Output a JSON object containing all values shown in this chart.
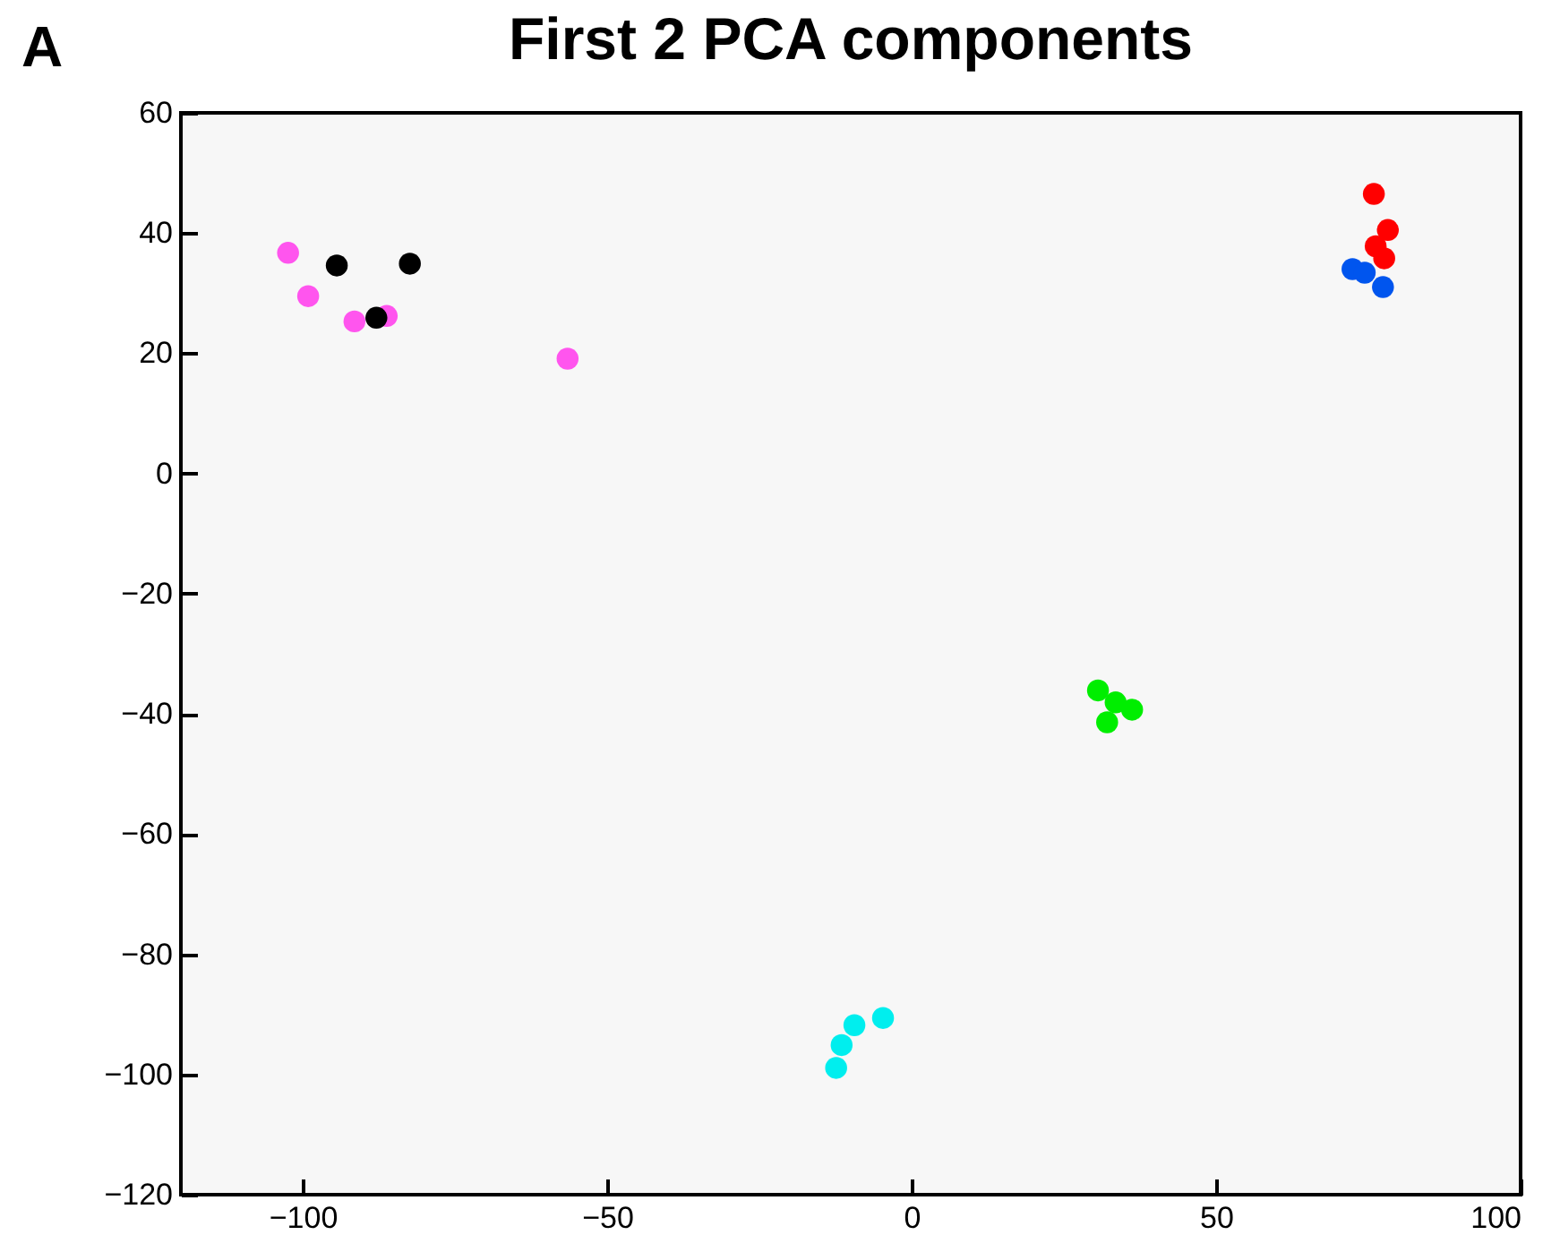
{
  "chart_data": {
    "type": "scatter",
    "title": "First 2 PCA components",
    "annotations": [
      "A"
    ],
    "xlim": [
      -120,
      100
    ],
    "xticks": [
      -100,
      -50,
      0,
      50,
      100
    ],
    "ylim": [
      -120,
      60
    ],
    "yticks": [
      -120,
      -100,
      -80,
      -60,
      -40,
      -20,
      0,
      20,
      40,
      60
    ],
    "grid": false,
    "legend": false,
    "marker": "circle",
    "series": [
      {
        "color": "#ff55ee",
        "x": [
          -102.4,
          -99.1,
          -91.5,
          -86.2,
          -56.5
        ],
        "values": [
          36.7,
          29.5,
          25.3,
          26.2,
          19.1
        ]
      },
      {
        "color": "#000000",
        "x": [
          -94.4,
          -82.4,
          -87.9
        ],
        "values": [
          34.6,
          34.9,
          25.9
        ]
      },
      {
        "color": "#ff0000",
        "x": [
          75.9,
          78.2,
          76.2,
          77.6
        ],
        "values": [
          46.5,
          40.5,
          37.8,
          35.8
        ]
      },
      {
        "color": "#0055ee",
        "x": [
          72.4,
          74.4,
          77.4
        ],
        "values": [
          34.0,
          33.4,
          31.0
        ]
      },
      {
        "color": "#00ee00",
        "x": [
          30.6,
          33.5,
          36.2,
          32.1
        ],
        "values": [
          -36.1,
          -38.1,
          -39.3,
          -41.4
        ]
      },
      {
        "color": "#00eeee",
        "x": [
          -4.7,
          -9.4,
          -11.5,
          -12.4
        ],
        "values": [
          -90.6,
          -91.8,
          -95.1,
          -98.9
        ]
      }
    ]
  }
}
